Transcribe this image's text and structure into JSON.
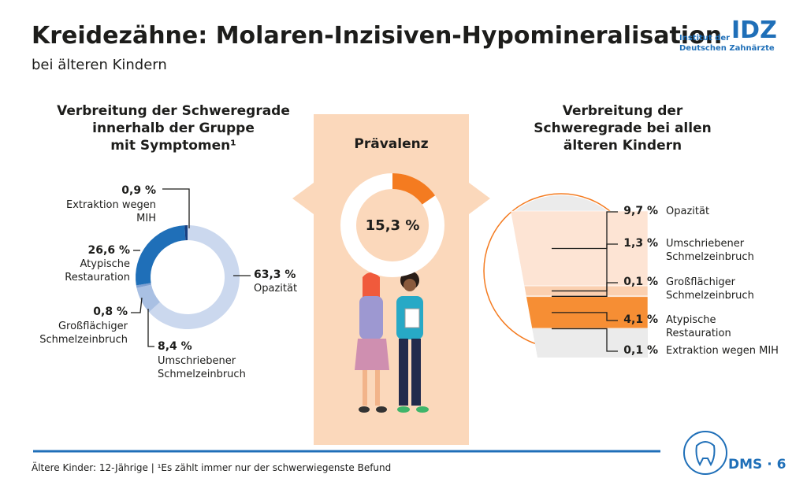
{
  "header": {
    "title": "Kreidezähne: Molaren-Inzisiven-Hypomineralisation",
    "subtitle": "bei älteren Kindern",
    "logo_text": "Institut der\nDeutschen Zahnärzte",
    "logo_mark": "IDZ"
  },
  "chart_data": [
    {
      "type": "donut",
      "title": "Verbreitung der Schweregrade\ninnerhalb der Gruppe\nmit Symptomen¹",
      "categories": [
        "Opazität",
        "Umschriebener\nSchmelzeinbruch",
        "Großflächiger\nSchmelzeinbruch",
        "Atypische\nRestauration",
        "Extraktion wegen\nMIH"
      ],
      "values": [
        63.3,
        8.4,
        0.8,
        26.6,
        0.9
      ],
      "value_labels": [
        "63,3 %",
        "8,4 %",
        "0,8 %",
        "26,6 %",
        "0,9 %"
      ],
      "colors": [
        "#cbd8ee",
        "#a9c0e3",
        "#7fa0d2",
        "#1f6fb8",
        "#173f80"
      ]
    },
    {
      "type": "donut",
      "title": "Prävalenz",
      "values": [
        15.3
      ],
      "value_labels": [
        "15,3 %"
      ],
      "color": "#f47b20"
    },
    {
      "type": "stacked-slice",
      "title": "Verbreitung der\nSchweregrade bei allen\nälteren Kindern",
      "categories": [
        "Opazität",
        "Umschriebener\nSchmelzeinbruch",
        "Großflächiger\nSchmelzeinbruch",
        "Atypische\nRestauration",
        "Extraktion wegen MIH"
      ],
      "values": [
        9.7,
        1.3,
        0.1,
        4.1,
        0.1
      ],
      "value_labels": [
        "9,7 %",
        "1,3 %",
        "0,1 %",
        "4,1 %",
        "0,1 %"
      ],
      "colors": [
        "#fde4d4",
        "#fbd0b0",
        "#f8b886",
        "#f68e34",
        "#c9c9c9"
      ]
    }
  ],
  "footer": {
    "note": "Ältere Kinder: 12-Jährige | ¹Es zählt immer nur der schwerwiegenste Befund",
    "badge": "DMS · 6"
  }
}
